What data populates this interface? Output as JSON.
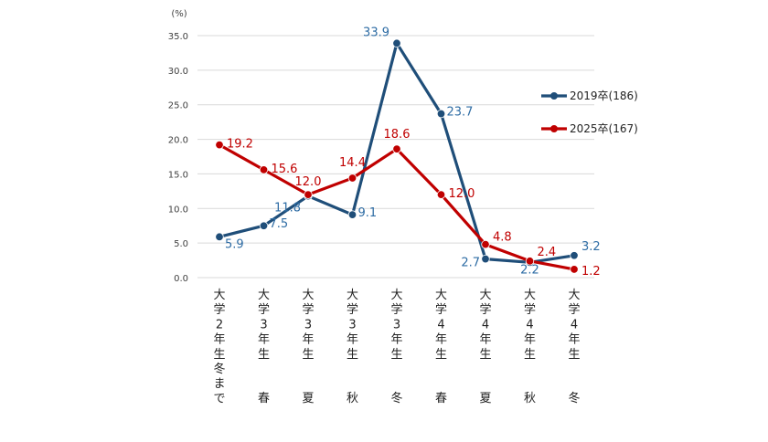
{
  "chart_data": {
    "type": "line",
    "ylabel": "(%)",
    "ylim": [
      0,
      35
    ],
    "yticks": [
      "0.0",
      "5.0",
      "10.0",
      "15.0",
      "20.0",
      "25.0",
      "30.0",
      "35.0"
    ],
    "grid": true,
    "legend_position": "right",
    "categories": [
      "大学2年生冬まで",
      "大学3年生春",
      "大学3年生夏",
      "大学3年生秋",
      "大学3年生冬",
      "大学4年生春",
      "大学4年生夏",
      "大学4年生秋",
      "大学4年生冬"
    ],
    "series": [
      {
        "name": "2019卒(186)",
        "color": "#1f4e79",
        "label_color": "#2e6ca4",
        "values": [
          5.9,
          7.5,
          11.8,
          9.1,
          33.9,
          23.7,
          2.7,
          2.2,
          3.2
        ],
        "labels": [
          "5.9",
          "7.5",
          "11.8",
          "9.1",
          "33.9",
          "23.7",
          "2.7",
          "2.2",
          "3.2"
        ]
      },
      {
        "name": "2025卒(167)",
        "color": "#c00000",
        "label_color": "#c00000",
        "values": [
          19.2,
          15.6,
          12.0,
          14.4,
          18.6,
          12.0,
          4.8,
          2.4,
          1.2
        ],
        "labels": [
          "19.2",
          "15.6",
          "12.0",
          "14.4",
          "18.6",
          "12.0",
          "4.8",
          "2.4",
          "1.2"
        ]
      }
    ]
  }
}
